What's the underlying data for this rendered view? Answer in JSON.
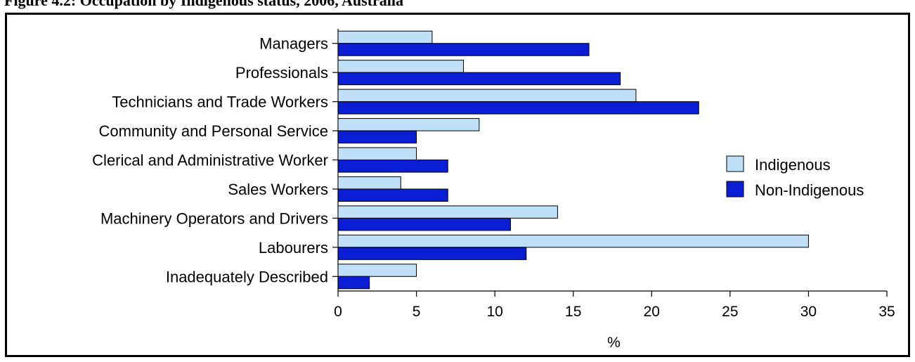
{
  "title": "Figure 4.2: Occupation by Indigenous status, 2006, Australia",
  "chart_data": {
    "type": "bar",
    "orientation": "horizontal",
    "title": "Figure 4.2: Occupation by Indigenous status, 2006, Australia",
    "xlabel": "%",
    "ylabel": "",
    "xlim": [
      0,
      35
    ],
    "xticks": [
      0,
      5,
      10,
      15,
      20,
      25,
      30,
      35
    ],
    "grid": false,
    "legend_position": "right",
    "categories": [
      "Managers",
      "Professionals",
      "Technicians and Trade Workers",
      "Community and Personal Service",
      "Clerical and Administrative Worker",
      "Sales Workers",
      "Machinery Operators and Drivers",
      "Labourers",
      "Inadequately Described"
    ],
    "series": [
      {
        "name": "Indigenous",
        "color": "#bfe0f7",
        "values": [
          6,
          8,
          19,
          9,
          5,
          4,
          14,
          30,
          5
        ]
      },
      {
        "name": "Non-Indigenous",
        "color": "#0a1fd4",
        "values": [
          16,
          18,
          23,
          5,
          7,
          7,
          11,
          12,
          2
        ]
      }
    ]
  }
}
